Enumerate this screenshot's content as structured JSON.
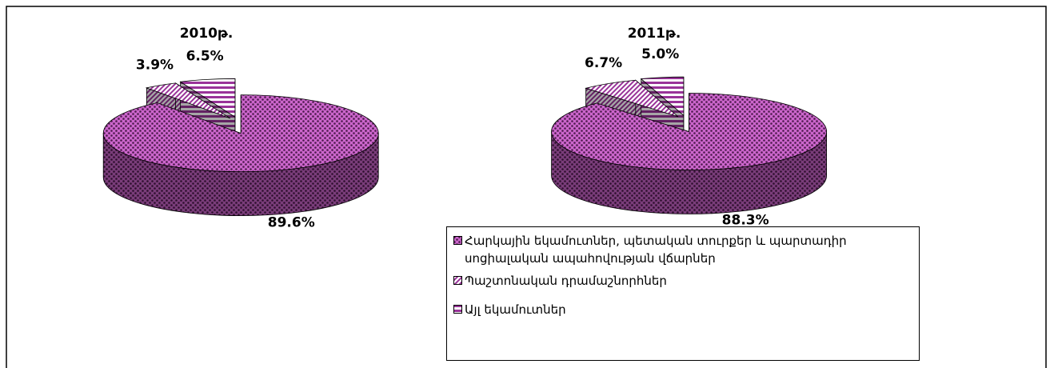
{
  "chart_data": [
    {
      "type": "pie",
      "title": "2010թ.",
      "values": [
        89.6,
        3.9,
        6.5
      ],
      "value_labels": [
        "89.6%",
        "3.9%",
        "6.5%"
      ],
      "colors": [
        "#cc66cc",
        "#993399",
        "#993399"
      ],
      "hatch": [
        "dots",
        "diagonal",
        "horizontal"
      ]
    },
    {
      "type": "pie",
      "title": "2011թ.",
      "values": [
        88.3,
        6.7,
        5.0
      ],
      "value_labels": [
        "88.3%",
        "6.7%",
        "5.0%"
      ],
      "colors": [
        "#cc66cc",
        "#993399",
        "#993399"
      ],
      "hatch": [
        "dots",
        "diagonal",
        "horizontal"
      ]
    }
  ],
  "legend": [
    "Հարկային եկամուտներ, պետական տուրքեր և պարտադիր սոցիալական ապահովության վճարներ",
    "Պաշտոնական դրամաշնորհներ",
    "Այլ եկամուտներ"
  ]
}
